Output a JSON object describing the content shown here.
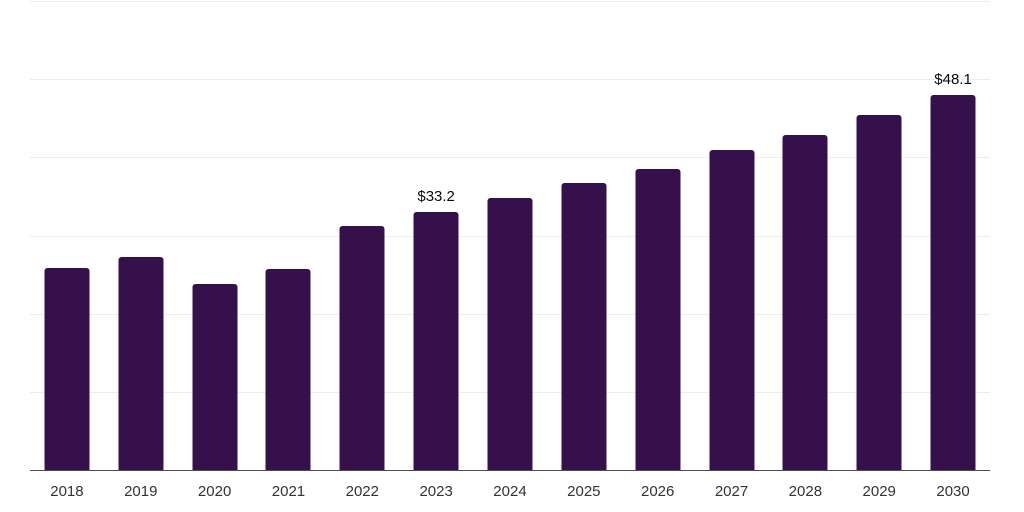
{
  "chart_data": {
    "type": "bar",
    "title": "",
    "xlabel": "",
    "ylabel": "",
    "categories": [
      "2018",
      "2019",
      "2020",
      "2021",
      "2022",
      "2023",
      "2024",
      "2025",
      "2026",
      "2027",
      "2028",
      "2029",
      "2030"
    ],
    "values": [
      26.0,
      27.4,
      23.9,
      25.8,
      31.4,
      33.2,
      34.9,
      36.9,
      38.7,
      41.1,
      43.0,
      45.5,
      48.1
    ],
    "data_labels": {
      "2023": "$33.2",
      "2030": "$48.1"
    },
    "ylim": [
      0,
      60
    ],
    "gridlines": {
      "visible": true,
      "interval": 10
    },
    "legend": "none",
    "y_axis_labels": "none",
    "colors": {
      "bar": "#36104a",
      "gridline": "#ededed",
      "axis_line": "#4d4d4d",
      "tick_label": "#333333",
      "value_label": "#0a0a0a",
      "background": "#ffffff"
    }
  }
}
